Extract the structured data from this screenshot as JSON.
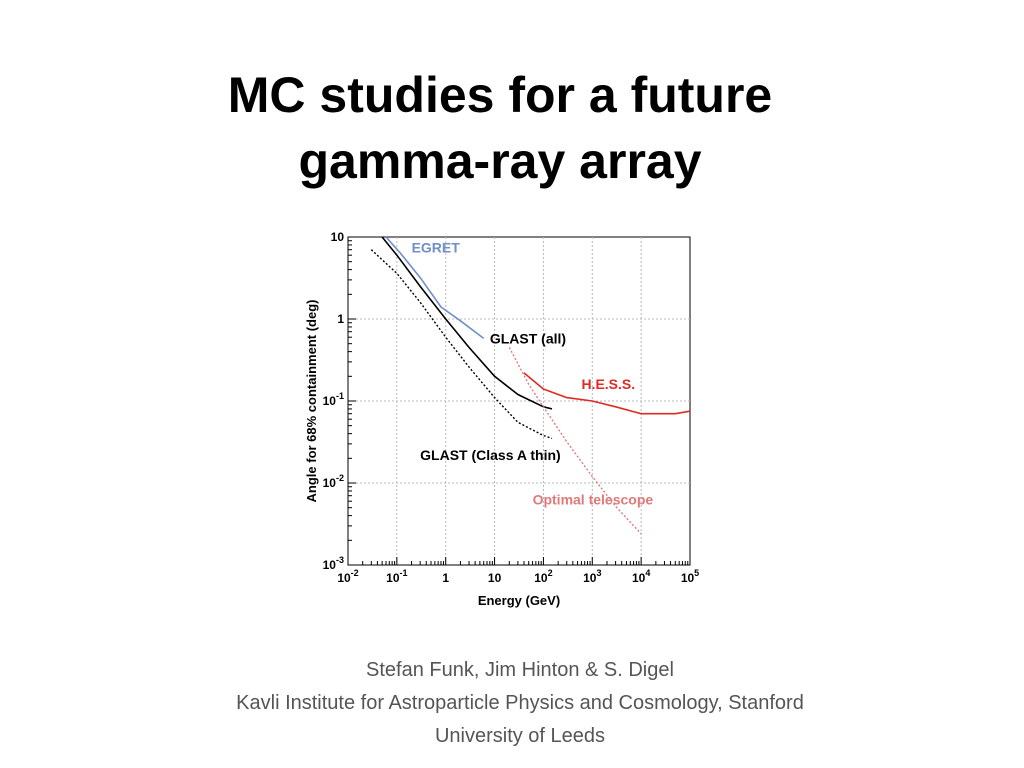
{
  "slide": {
    "title_line1": "MC studies for a future",
    "title_line2": "gamma-ray array",
    "credits": [
      "Stefan Funk, Jim Hinton & S. Digel",
      "Kavli Institute for Astroparticle Physics and Cosmology, Stanford",
      "University of Leeds"
    ]
  },
  "chart_data": {
    "type": "line",
    "xlabel": "Energy (GeV)",
    "ylabel": "Angle for 68% containment (deg)",
    "xscale": "log",
    "yscale": "log",
    "xlim": [
      0.01,
      100000
    ],
    "ylim": [
      0.001,
      10
    ],
    "grid": true,
    "x_ticks": [
      {
        "value": 0.01,
        "base": "10",
        "exp": "-2"
      },
      {
        "value": 0.1,
        "base": "10",
        "exp": "-1"
      },
      {
        "value": 1,
        "base": "1",
        "exp": ""
      },
      {
        "value": 10,
        "base": "10",
        "exp": ""
      },
      {
        "value": 100,
        "base": "10",
        "exp": "2"
      },
      {
        "value": 1000,
        "base": "10",
        "exp": "3"
      },
      {
        "value": 10000,
        "base": "10",
        "exp": "4"
      },
      {
        "value": 100000,
        "base": "10",
        "exp": "5"
      }
    ],
    "y_ticks": [
      {
        "value": 0.001,
        "base": "10",
        "exp": "-3"
      },
      {
        "value": 0.01,
        "base": "10",
        "exp": "-2"
      },
      {
        "value": 0.1,
        "base": "10",
        "exp": "-1"
      },
      {
        "value": 1,
        "base": "1",
        "exp": ""
      },
      {
        "value": 10,
        "base": "10",
        "exp": ""
      }
    ],
    "series": [
      {
        "name": "EGRET",
        "color": "#6e8fc9",
        "dash": "solid",
        "points": [
          [
            0.06,
            10
          ],
          [
            0.12,
            6.3
          ],
          [
            0.3,
            3.2
          ],
          [
            0.8,
            1.4
          ],
          [
            2,
            0.95
          ],
          [
            6,
            0.58
          ]
        ]
      },
      {
        "name": "GLAST (all)",
        "color": "#000000",
        "dash": "solid",
        "points": [
          [
            0.05,
            10
          ],
          [
            0.1,
            6
          ],
          [
            0.3,
            2.5
          ],
          [
            1,
            1.0
          ],
          [
            3,
            0.45
          ],
          [
            10,
            0.2
          ],
          [
            30,
            0.12
          ],
          [
            100,
            0.085
          ],
          [
            150,
            0.08
          ]
        ]
      },
      {
        "name": "GLAST (Class A thin)",
        "color": "#000000",
        "dash": "dotted",
        "points": [
          [
            0.03,
            7
          ],
          [
            0.1,
            3.6
          ],
          [
            0.3,
            1.6
          ],
          [
            1,
            0.6
          ],
          [
            3,
            0.26
          ],
          [
            10,
            0.11
          ],
          [
            30,
            0.055
          ],
          [
            100,
            0.038
          ],
          [
            150,
            0.035
          ]
        ]
      },
      {
        "name": "H.E.S.S.",
        "color": "#e02a23",
        "dash": "solid",
        "points": [
          [
            40,
            0.22
          ],
          [
            100,
            0.14
          ],
          [
            300,
            0.11
          ],
          [
            1000,
            0.1
          ],
          [
            3000,
            0.085
          ],
          [
            10000,
            0.07
          ],
          [
            50000,
            0.07
          ],
          [
            100000,
            0.075
          ]
        ]
      },
      {
        "name": "Optimal telescope",
        "color": "#e07a7a",
        "dash": "dotted",
        "points": [
          [
            20,
            0.45
          ],
          [
            50,
            0.16
          ],
          [
            100,
            0.085
          ],
          [
            300,
            0.032
          ],
          [
            1000,
            0.012
          ],
          [
            3000,
            0.0052
          ],
          [
            10000,
            0.0024
          ]
        ]
      }
    ],
    "annotations": [
      {
        "text": "EGRET",
        "color": "#6e8fc9",
        "x": 0.2,
        "y": 6.5
      },
      {
        "text": "GLAST (all)",
        "color": "#000000",
        "x": 8,
        "y": 0.5
      },
      {
        "text": "H.E.S.S.",
        "color": "#e02a23",
        "x": 600,
        "y": 0.14
      },
      {
        "text": "GLAST (Class A thin)",
        "color": "#000000",
        "x": 0.3,
        "y": 0.019
      },
      {
        "text": "Optimal telescope",
        "color": "#e07a7a",
        "x": 60,
        "y": 0.0055
      }
    ]
  }
}
